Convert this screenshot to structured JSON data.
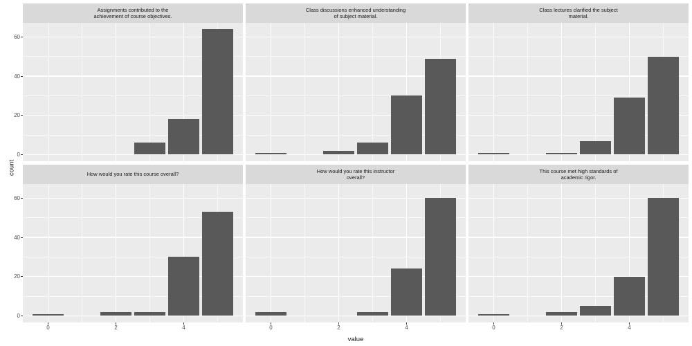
{
  "chart_data": {
    "type": "bar",
    "subtype": "faceted-histogram",
    "grid": [
      2,
      3
    ],
    "xlabel": "value",
    "ylabel": "count",
    "x_values": [
      0,
      1,
      2,
      3,
      4,
      5
    ],
    "x_ticks": [
      0,
      2,
      4
    ],
    "x_minor_gridlines": [
      1,
      3,
      5
    ],
    "y_ticks": [
      0,
      20,
      40,
      60
    ],
    "y_minor_gridlines": [
      10,
      30,
      50
    ],
    "xlim": [
      -0.745,
      5.745
    ],
    "ylim": [
      -3.36,
      67.2
    ],
    "bar_width": 0.9,
    "grid_on": true,
    "legend": "none",
    "colors": {
      "bar_fill": "#595959",
      "panel_background": "#ebebeb",
      "strip_background": "#d9d9d9",
      "gridline": "#ffffff",
      "axis_text": "#4d4d4d",
      "title_text": "#1a1a1a",
      "tick_mark": "#333333",
      "figure_background": "#ffffff"
    },
    "facets": [
      {
        "title": "Assignments contributed to the\nachievement of course objectives.",
        "counts": {
          "3": 6,
          "4": 18,
          "5": 64
        }
      },
      {
        "title": "Class discussions enhanced understanding\nof subject material.",
        "counts": {
          "0": 1,
          "2": 2,
          "3": 6,
          "4": 30,
          "5": 49
        }
      },
      {
        "title": "Class lectures clarified the subject\nmaterial.",
        "counts": {
          "0": 1,
          "2": 1,
          "3": 7,
          "4": 29,
          "5": 50
        }
      },
      {
        "title": "How would you rate this course overall?",
        "counts": {
          "0": 1,
          "2": 2,
          "3": 2,
          "4": 30,
          "5": 53
        }
      },
      {
        "title": "How would you rate this instructor\noverall?",
        "counts": {
          "0": 2,
          "3": 2,
          "4": 24,
          "5": 60
        }
      },
      {
        "title": "This course met high standards of\nacademic rigor.",
        "counts": {
          "0": 1,
          "2": 2,
          "3": 5,
          "4": 20,
          "5": 60
        }
      }
    ]
  }
}
